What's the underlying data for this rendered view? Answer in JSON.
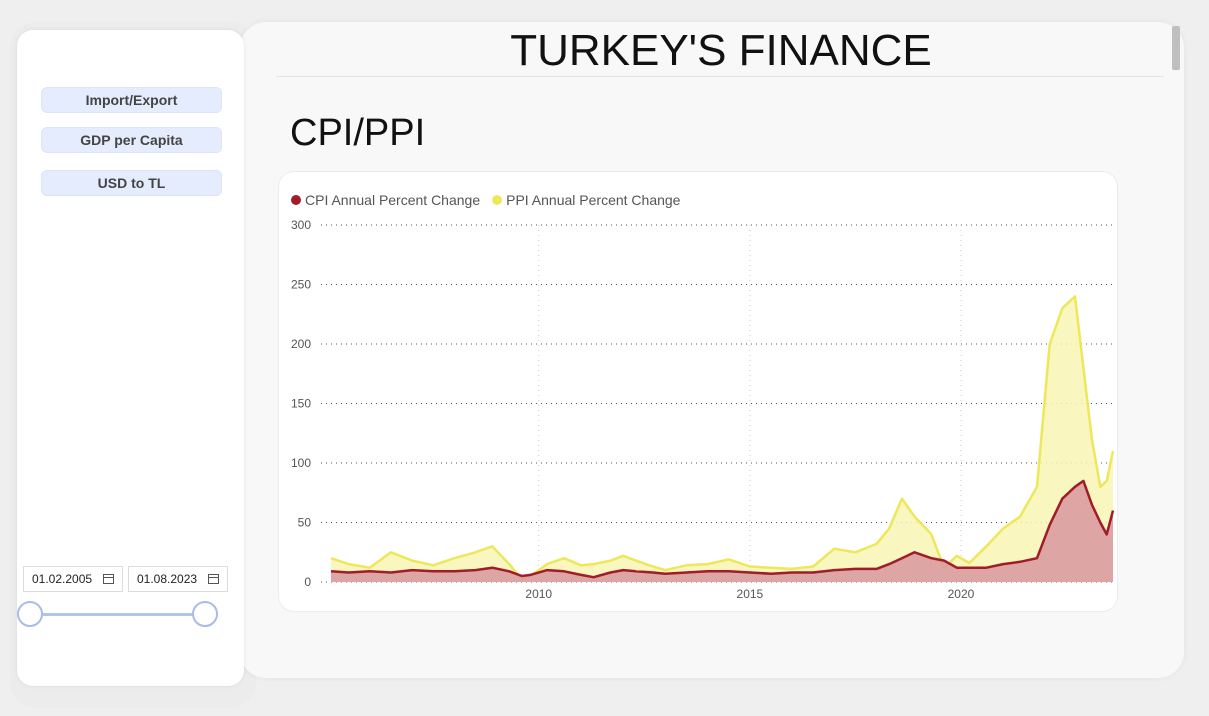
{
  "app": {
    "title": "TURKEY'S FINANCE"
  },
  "sidebar": {
    "nav": [
      {
        "label": "Import/Export"
      },
      {
        "label": "GDP per Capita"
      },
      {
        "label": "USD to TL"
      }
    ],
    "date_range": {
      "start": "01.02.2005",
      "end": "01.08.2023"
    },
    "slider": {
      "start_fraction": 0,
      "end_fraction": 1
    }
  },
  "section": {
    "title": "CPI/PPI"
  },
  "colors": {
    "cpi": "#a01c28",
    "cpi_fill": "#d7979e",
    "ppi": "#ede85a",
    "ppi_fill": "#f9f4b4"
  },
  "chart_data": {
    "type": "area",
    "title": "",
    "xlabel": "",
    "ylabel": "",
    "ylim": [
      0,
      300
    ],
    "yticks": [
      0,
      50,
      100,
      150,
      200,
      250,
      300
    ],
    "xticks": [
      2010,
      2015,
      2020
    ],
    "xlim": [
      2005.08,
      2023.6
    ],
    "grid": "dotted",
    "legend": "top-left",
    "series": [
      {
        "name": "CPI Annual Percent Change",
        "x": [
          2005.08,
          2005.5,
          2006,
          2006.5,
          2007,
          2007.5,
          2008,
          2008.5,
          2008.9,
          2009.3,
          2009.6,
          2009.8,
          2010.2,
          2010.6,
          2011,
          2011.3,
          2011.7,
          2012,
          2012.3,
          2012.7,
          2013,
          2013.5,
          2014,
          2014.5,
          2015,
          2015.5,
          2016,
          2016.5,
          2017,
          2017.5,
          2018,
          2018.3,
          2018.6,
          2018.9,
          2019.3,
          2019.6,
          2019.9,
          2020.2,
          2020.6,
          2021,
          2021.4,
          2021.8,
          2022.1,
          2022.4,
          2022.7,
          2022.9,
          2023.1,
          2023.3,
          2023.45,
          2023.6
        ],
        "values": [
          9,
          8,
          9,
          8,
          10,
          9,
          9,
          10,
          12,
          9,
          5,
          6,
          10,
          9,
          6,
          4,
          8,
          10,
          9,
          8,
          7,
          8,
          9,
          9,
          8,
          7,
          8,
          8,
          10,
          11,
          11,
          15,
          20,
          25,
          20,
          18,
          12,
          12,
          12,
          15,
          17,
          20,
          48,
          70,
          80,
          85,
          65,
          50,
          40,
          60
        ]
      },
      {
        "name": "PPI Annual Percent Change",
        "x": [
          2005.08,
          2005.5,
          2006,
          2006.5,
          2007,
          2007.5,
          2008,
          2008.5,
          2008.9,
          2009.3,
          2009.6,
          2009.8,
          2010.2,
          2010.6,
          2011,
          2011.3,
          2011.7,
          2012,
          2012.3,
          2012.7,
          2013,
          2013.5,
          2014,
          2014.5,
          2015,
          2015.5,
          2016,
          2016.5,
          2017,
          2017.5,
          2018,
          2018.3,
          2018.6,
          2018.9,
          2019.3,
          2019.6,
          2019.9,
          2020.2,
          2020.6,
          2021,
          2021.4,
          2021.8,
          2022.1,
          2022.4,
          2022.7,
          2022.9,
          2023.1,
          2023.3,
          2023.45,
          2023.6
        ],
        "values": [
          20,
          15,
          12,
          25,
          18,
          14,
          20,
          25,
          30,
          15,
          2,
          5,
          15,
          20,
          14,
          15,
          18,
          22,
          18,
          13,
          10,
          14,
          15,
          19,
          13,
          12,
          11,
          13,
          28,
          25,
          32,
          45,
          70,
          55,
          40,
          12,
          22,
          16,
          30,
          45,
          55,
          80,
          200,
          230,
          240,
          180,
          120,
          80,
          85,
          110
        ]
      }
    ]
  }
}
